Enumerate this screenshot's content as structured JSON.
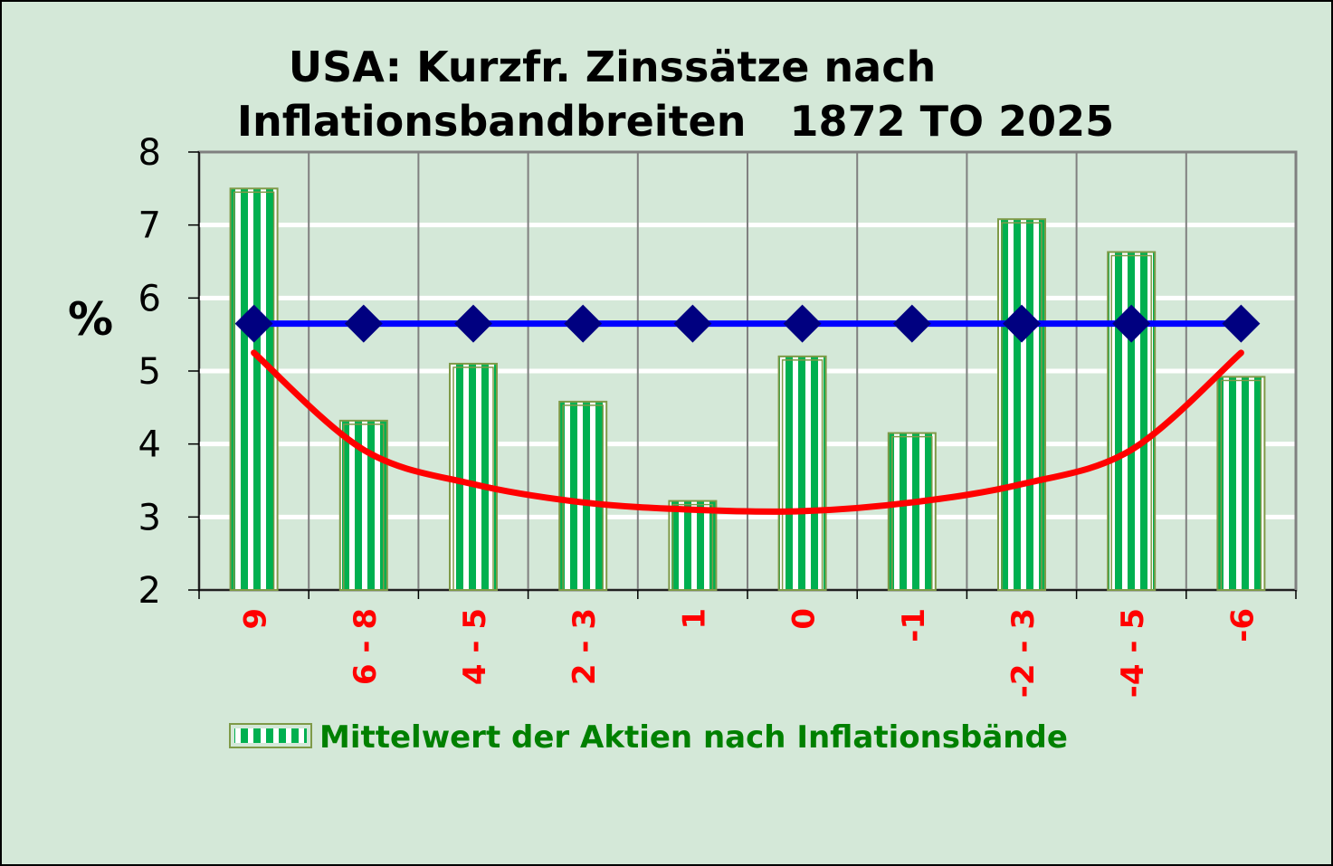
{
  "chart_data": {
    "type": "bar",
    "title_line1": "USA: Kurzfr. Zinssätze nach",
    "title_line2": "Inflationsbandbreiten   1872 TO 2025",
    "ylabel": "%",
    "xlabel": "",
    "ylim": [
      2,
      8
    ],
    "yticks": [
      "2",
      "3",
      "4",
      "5",
      "6",
      "7",
      "8"
    ],
    "grid": true,
    "categories": [
      "9",
      "6 - 8",
      "4 - 5",
      "2 - 3",
      "1",
      "0",
      "-1",
      "-2 - 3",
      "-4 - 5",
      "-6"
    ],
    "series": [
      {
        "name": "Mittelwert der Aktien nach Inflationsbände",
        "type": "bar",
        "values": [
          7.5,
          4.32,
          5.1,
          4.58,
          3.22,
          5.2,
          4.15,
          7.08,
          6.63,
          4.92
        ],
        "color": "#00b050"
      },
      {
        "type": "line",
        "values": [
          5.65,
          5.65,
          5.65,
          5.65,
          5.65,
          5.65,
          5.65,
          5.65,
          5.65,
          5.65
        ],
        "color": "#0000ff",
        "marker_color": "#000080"
      },
      {
        "type": "trend",
        "values": [
          5.25,
          3.92,
          3.45,
          3.2,
          3.1,
          3.08,
          3.2,
          3.45,
          3.92,
          5.25
        ],
        "color": "#ff0000"
      }
    ],
    "legend": "bottom",
    "category_label_color": "#ff0000",
    "legend_text_color": "#008000"
  }
}
